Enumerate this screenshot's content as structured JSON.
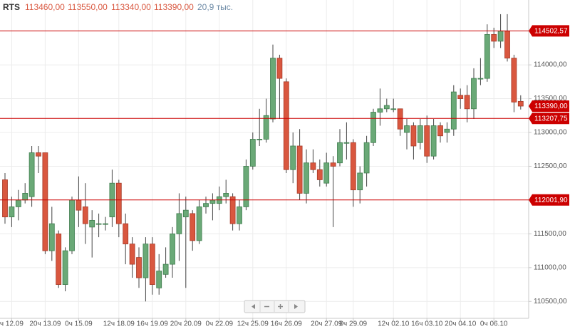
{
  "chart_data": {
    "type": "candlestick",
    "title": "RTS",
    "info": [
      "113460,00",
      "113550,00",
      "113340,00",
      "113390,00"
    ],
    "volume": "20,9 тыс.",
    "categories": [
      null,
      "ч 12.09",
      null,
      null,
      null,
      null,
      "20ч 13.09",
      null,
      null,
      null,
      null,
      "0ч 15.09",
      null,
      null,
      null,
      null,
      null,
      "12ч 18.09",
      null,
      null,
      null,
      null,
      "16ч 19.09",
      null,
      null,
      null,
      null,
      "20ч 20.09",
      null,
      null,
      null,
      null,
      "0ч 22.09",
      null,
      null,
      null,
      null,
      "12ч 25.09",
      null,
      null,
      null,
      null,
      "16ч 26.09",
      null,
      null,
      null,
      null,
      null,
      "20ч 27.09",
      null,
      null,
      null,
      "0ч 29.09",
      null,
      null,
      null,
      null,
      null,
      "12ч 02.10",
      null,
      null,
      null,
      null,
      "16ч 03.10",
      null,
      null,
      null,
      null,
      "20ч 04.10",
      null,
      null,
      null,
      null,
      "0ч 06.10",
      null,
      null,
      null,
      null
    ],
    "open": [
      112300,
      111750,
      111900,
      112000,
      112050,
      112700,
      112700,
      111250,
      111500,
      110750,
      111250,
      112000,
      111900,
      111600,
      111650,
      111650,
      111750,
      112250,
      111650,
      111350,
      111150,
      110850,
      111350,
      110700,
      110900,
      111050,
      111500,
      111750,
      111800,
      111400,
      111900,
      111950,
      111950,
      112050,
      112050,
      111650,
      111900,
      112500,
      112900,
      112900,
      113200,
      114100,
      113750,
      112450,
      112800,
      112100,
      112550,
      112450,
      112250,
      112550,
      112550,
      112850,
      112850,
      112150,
      112400,
      112850,
      113300,
      113350,
      113350,
      113350,
      113000,
      113100,
      112850,
      113100,
      112650,
      113100,
      113000,
      113050,
      113550,
      113550,
      113350,
      113800,
      113800,
      114450,
      114350,
      114500,
      114100,
      113460
    ],
    "high": [
      112400,
      112050,
      112150,
      112250,
      112800,
      112800,
      112700,
      111900,
      111550,
      111300,
      112050,
      112350,
      112250,
      111850,
      111800,
      111750,
      112450,
      112300,
      111800,
      111450,
      111300,
      111450,
      111450,
      111200,
      111300,
      111600,
      112100,
      112050,
      111850,
      112000,
      112050,
      112100,
      112200,
      112300,
      112100,
      112000,
      112600,
      113000,
      113350,
      113500,
      114300,
      114150,
      113800,
      113000,
      113050,
      112750,
      112750,
      112600,
      112700,
      112650,
      113050,
      113150,
      112900,
      112500,
      112950,
      113350,
      113650,
      113500,
      113500,
      113350,
      113200,
      113150,
      113200,
      113250,
      113200,
      113150,
      113150,
      113700,
      113650,
      113700,
      113950,
      114100,
      114600,
      114550,
      114750,
      114750,
      114150,
      113550
    ],
    "low": [
      111650,
      111600,
      111700,
      111950,
      111900,
      112400,
      111200,
      111100,
      110700,
      110650,
      111200,
      111600,
      111350,
      111150,
      111450,
      111550,
      111600,
      111450,
      111050,
      110850,
      110700,
      110500,
      110600,
      110600,
      110850,
      110850,
      111100,
      110700,
      111250,
      111350,
      111800,
      111700,
      111850,
      111950,
      111550,
      111550,
      111850,
      112450,
      112800,
      112850,
      113150,
      113200,
      112400,
      112250,
      112000,
      111950,
      112400,
      112200,
      112200,
      111600,
      112500,
      112600,
      111900,
      111950,
      112200,
      112800,
      113100,
      113300,
      113300,
      112950,
      112750,
      112600,
      112750,
      112550,
      112600,
      112850,
      112850,
      112950,
      113350,
      113150,
      113200,
      113700,
      113750,
      114250,
      114250,
      114050,
      113300,
      113340
    ],
    "close": [
      111750,
      111900,
      112000,
      112100,
      112700,
      112650,
      111250,
      111650,
      110750,
      111250,
      112000,
      111850,
      111650,
      111700,
      111650,
      111650,
      112250,
      111650,
      111350,
      111050,
      110850,
      111350,
      110750,
      110950,
      111050,
      111500,
      111800,
      111850,
      111400,
      111900,
      111950,
      112000,
      112050,
      112100,
      111650,
      111900,
      112500,
      112900,
      112900,
      113250,
      114100,
      113800,
      112450,
      112800,
      112100,
      112550,
      112450,
      112300,
      112550,
      112500,
      112850,
      112850,
      112150,
      112400,
      112850,
      113300,
      113350,
      113400,
      113350,
      113050,
      113100,
      112800,
      113100,
      112650,
      113100,
      112950,
      113050,
      113600,
      113500,
      113350,
      113800,
      113800,
      114450,
      114350,
      114500,
      114100,
      113450,
      113390
    ],
    "up_color": "#6aa977",
    "down_color": "#d9573f",
    "ylim": [
      110250,
      114960
    ],
    "yticks": [
      {
        "value": 110500,
        "label": "110500,00"
      },
      {
        "value": 111000,
        "label": "111000,00"
      },
      {
        "value": 111500,
        "label": "111500,00"
      },
      {
        "value": 112500,
        "label": "112500,00"
      },
      {
        "value": 113000,
        "label": "113000,00"
      },
      {
        "value": 113500,
        "label": "113500,00"
      },
      {
        "value": 114000,
        "label": "114000,00"
      }
    ],
    "levels": [
      {
        "value": 114502.57,
        "label": "114502,57"
      },
      {
        "value": 113207.75,
        "label": "113207,75"
      },
      {
        "value": 112001.9,
        "label": "112001,90"
      }
    ],
    "last_price": {
      "value": 113390,
      "label": "113390,00"
    },
    "level_color": "#cc0000",
    "grid": true
  }
}
